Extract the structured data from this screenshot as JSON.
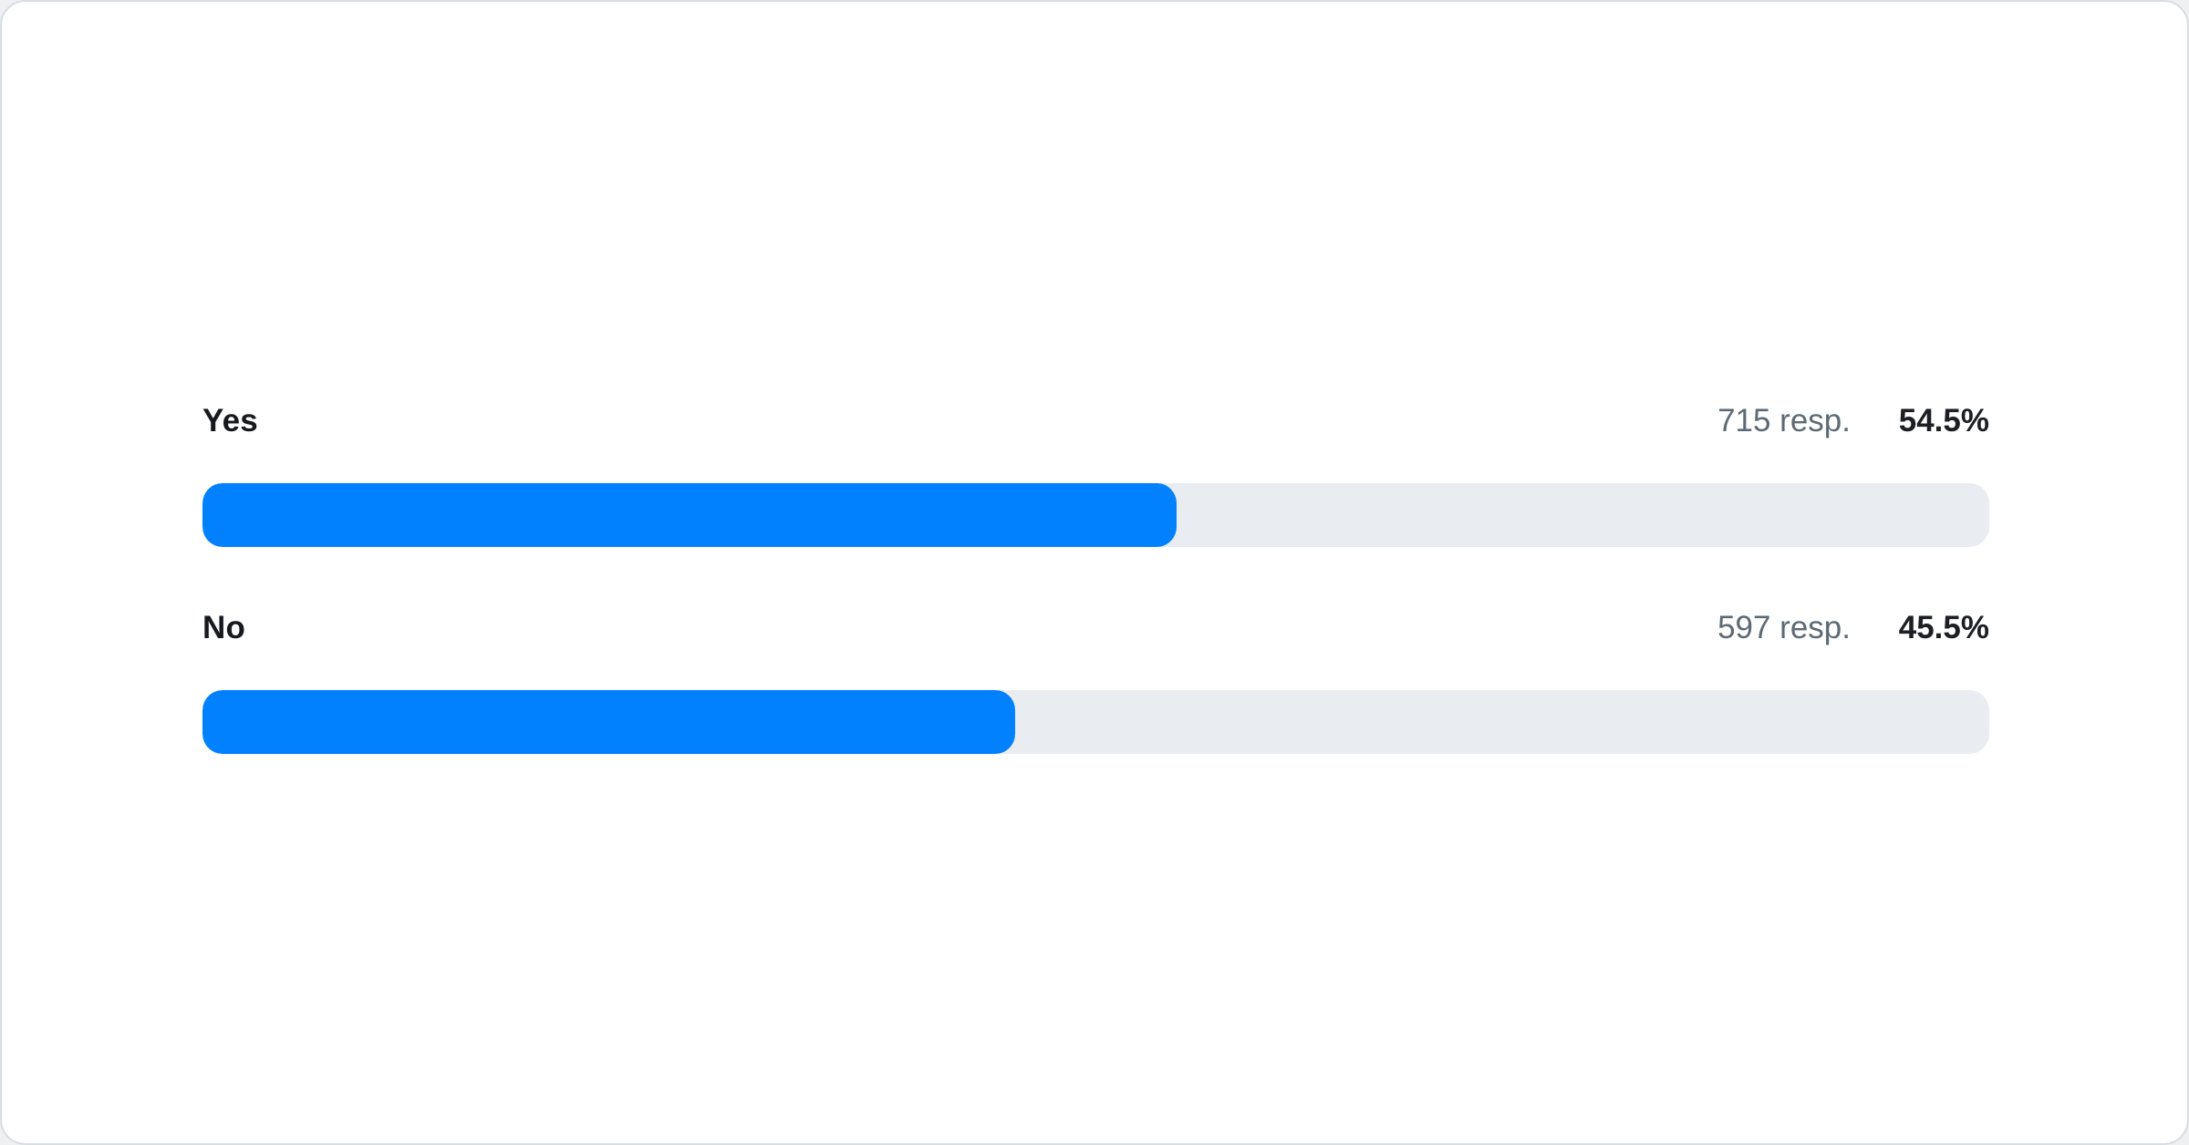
{
  "chart_data": {
    "type": "bar",
    "orientation": "horizontal",
    "categories": [
      "Yes",
      "No"
    ],
    "values": [
      54.5,
      45.5
    ],
    "responses": [
      715,
      597
    ],
    "value_unit": "%",
    "xlim": [
      0,
      100
    ],
    "title": "",
    "legend": false,
    "grid": false
  },
  "rows": [
    {
      "label": "Yes",
      "responses_text": "715 resp.",
      "percent_text": "54.5%",
      "percent": 54.5
    },
    {
      "label": "No",
      "responses_text": "597 resp.",
      "percent_text": "45.5%",
      "percent": 45.5
    }
  ],
  "colors": {
    "bar_fill": "#0281ff",
    "bar_track": "#e9edf1",
    "label_text": "#16191d",
    "muted_text": "#5d6a75",
    "card_border": "#d8dde2",
    "card_bg": "#ffffff"
  }
}
